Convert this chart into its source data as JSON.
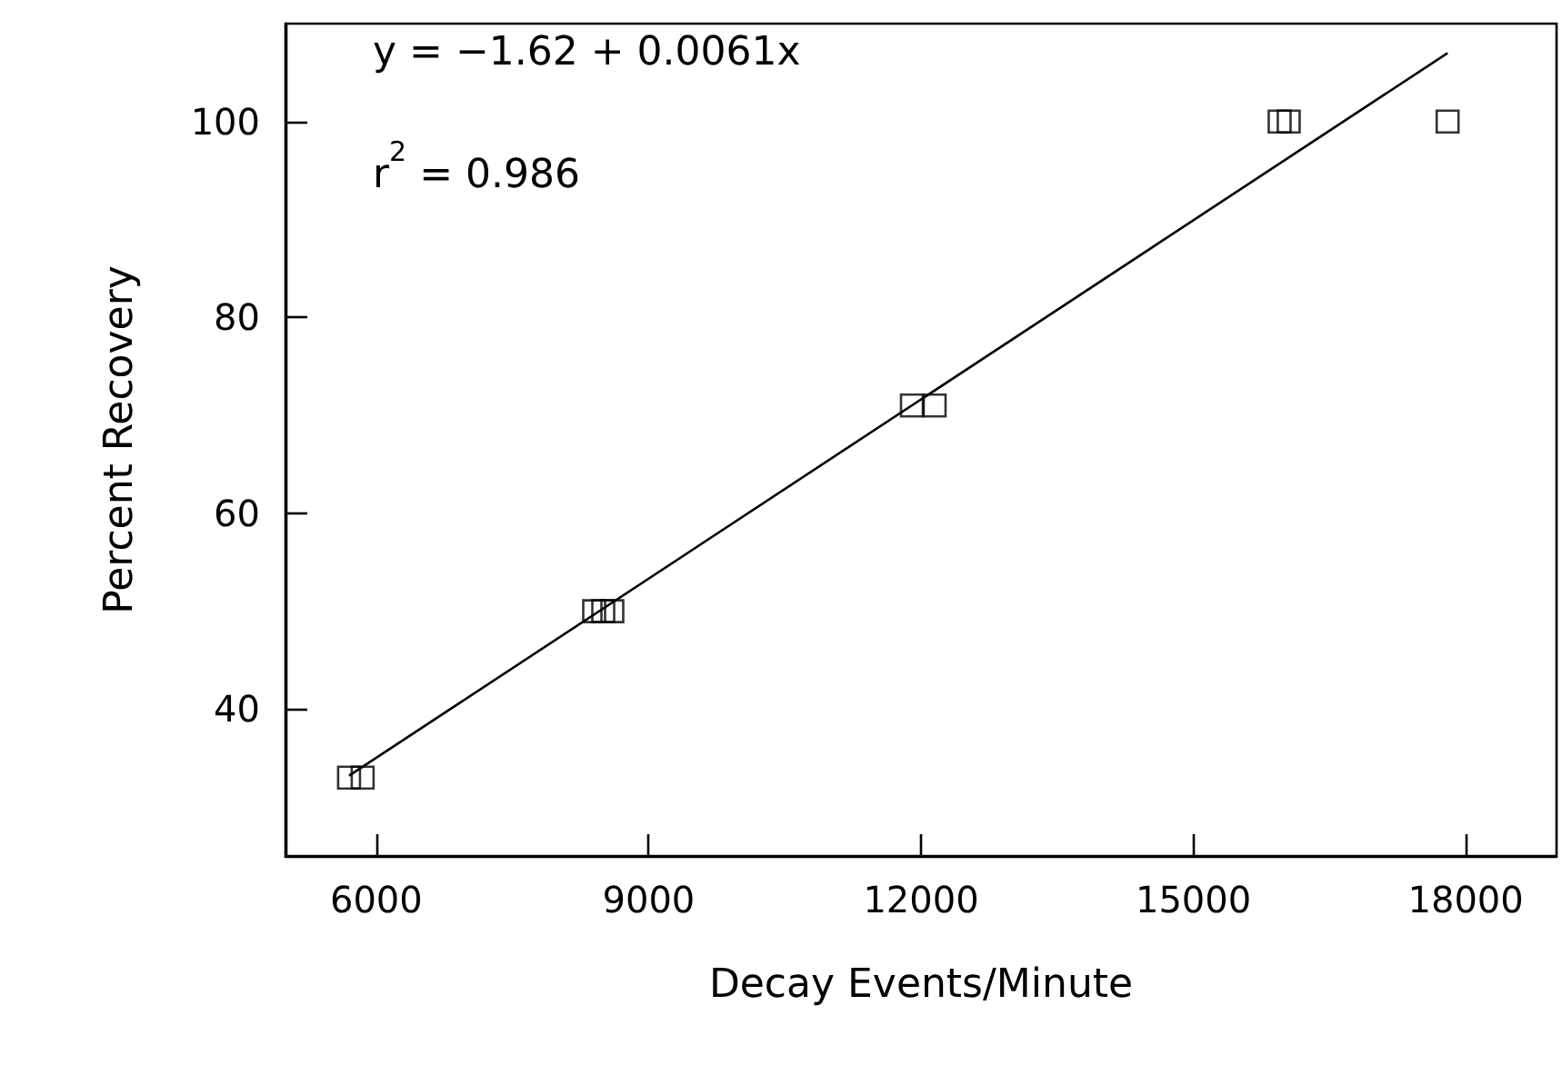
{
  "chart_data": {
    "type": "scatter",
    "xlabel": "Decay Events/Minute",
    "ylabel": "Percent Recovery",
    "annotations": [
      "y = −1.62 + 0.0061x",
      "r$^{2}$ = 0.986"
    ],
    "series": [
      {
        "color": "#000000",
        "marker": "square",
        "x": [
          5700,
          5850,
          8400,
          8500,
          8600,
          11900,
          12150,
          15950,
          16050,
          17800
        ],
        "values": [
          33,
          33,
          50,
          50,
          50,
          71,
          71,
          100,
          100,
          100
        ]
      },
      {
        "type": "line",
        "color": "#000000",
        "marker": "none",
        "line_style": "solid",
        "x": [
          5700,
          17800
        ],
        "values": [
          33.2,
          107
        ]
      }
    ],
    "xlim": [
      5000,
      19000
    ],
    "xticks": [
      6000,
      9000,
      12000,
      15000,
      18000
    ],
    "ylim": [
      25,
      110
    ],
    "yticks": [
      40,
      60,
      80,
      100
    ],
    "grid": false
  }
}
